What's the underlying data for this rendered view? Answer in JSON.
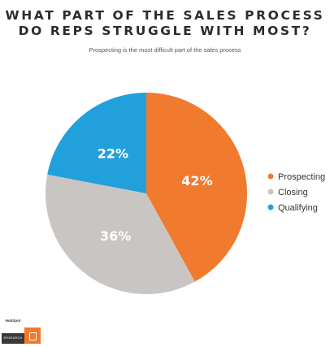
{
  "title_line1": "WHAT PART OF THE SALES PROCESS",
  "title_line2": "DO REPS STRUGGLE WITH MOST?",
  "subtitle": "Prospecting is the most difficult part of the sales process",
  "colors": {
    "prospecting": "#f07a2e",
    "closing": "#c9c5c3",
    "qualifying": "#21a0db"
  },
  "logo": {
    "word": "HubSpot",
    "bar_text": "RESEARCH"
  },
  "chart_data": {
    "type": "pie",
    "title": "WHAT PART OF THE SALES PROCESS DO REPS STRUGGLE WITH MOST?",
    "subtitle": "Prospecting is the most difficult part of the sales process",
    "legend_position": "right",
    "slices": [
      {
        "name": "Prospecting",
        "value": 42,
        "label": "42%",
        "color": "#f07a2e"
      },
      {
        "name": "Closing",
        "value": 36,
        "label": "36%",
        "color": "#c9c5c3"
      },
      {
        "name": "Qualifying",
        "value": 22,
        "label": "22%",
        "color": "#21a0db"
      }
    ]
  }
}
